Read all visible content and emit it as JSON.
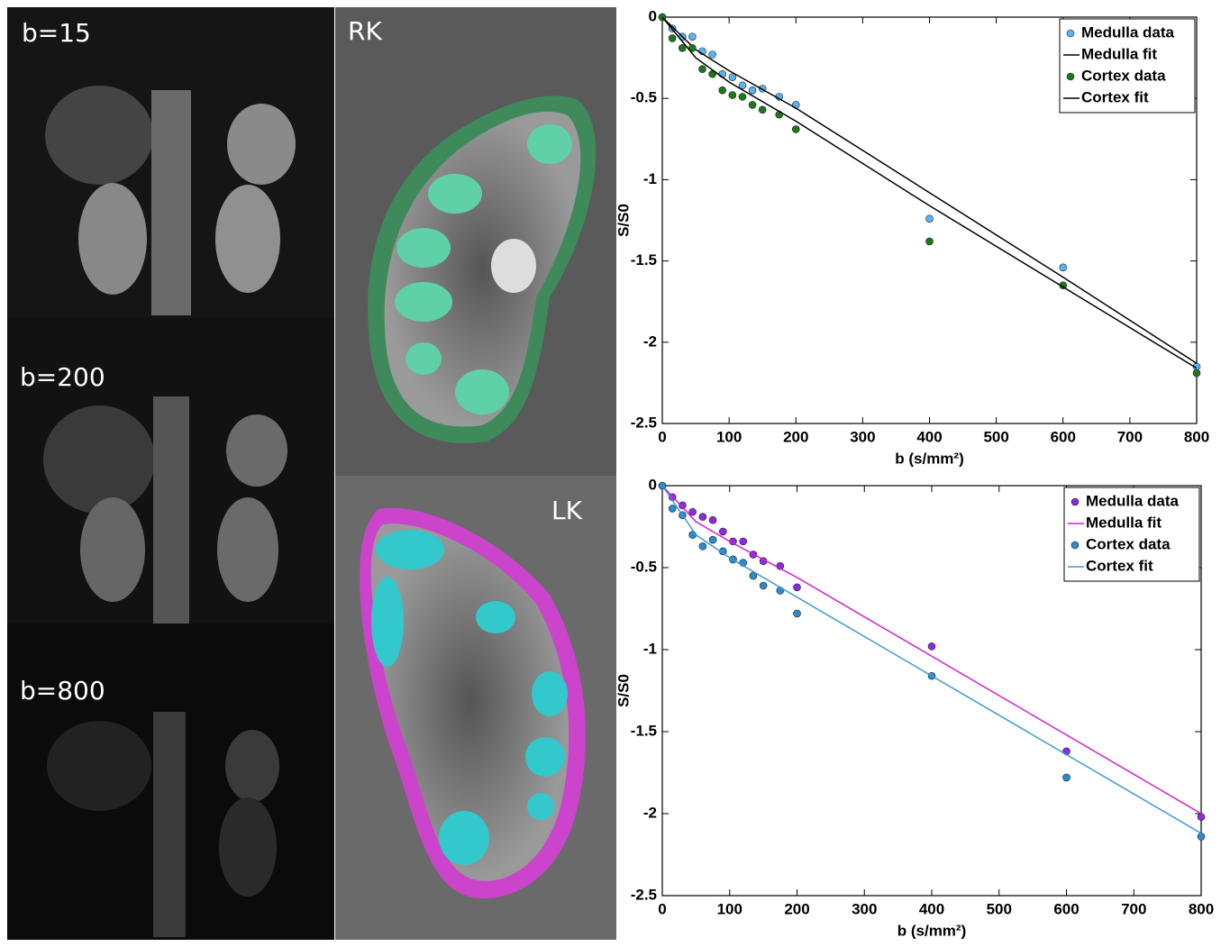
{
  "image_labels": [
    "b=15",
    "b=200",
    "b=800",
    "RK",
    "LK"
  ],
  "chart_data": [
    {
      "type": "scatter",
      "ylabel": "S/S0",
      "xlabel": "b (s/mm²)",
      "xlim": [
        0,
        800
      ],
      "ylim": [
        -2.5,
        0
      ],
      "xticks": [
        0,
        100,
        200,
        300,
        400,
        500,
        600,
        700,
        800
      ],
      "yticks": [
        -2.5,
        -2,
        -1.5,
        -1,
        -0.5,
        0
      ],
      "legend": "upper right",
      "series": [
        {
          "name": "Medulla data",
          "mode": "markers",
          "color": "#5ab4f0",
          "x": [
            0,
            15,
            30,
            45,
            60,
            75,
            90,
            105,
            120,
            135,
            150,
            175,
            200,
            400,
            600,
            800
          ],
          "values": [
            0,
            -0.07,
            -0.12,
            -0.12,
            -0.21,
            -0.23,
            -0.35,
            -0.37,
            -0.42,
            -0.45,
            -0.44,
            -0.49,
            -0.54,
            -1.24,
            -1.54,
            -2.15
          ]
        },
        {
          "name": "Medulla fit",
          "mode": "line",
          "color": "#000000",
          "x": [
            0,
            50,
            100,
            200,
            400,
            600,
            800
          ],
          "values": [
            0,
            -0.2,
            -0.33,
            -0.56,
            -1.08,
            -1.6,
            -2.13
          ]
        },
        {
          "name": "Cortex data",
          "mode": "markers",
          "color": "#1a7a1a",
          "x": [
            0,
            15,
            30,
            45,
            60,
            75,
            90,
            105,
            120,
            135,
            150,
            175,
            200,
            400,
            600,
            800
          ],
          "values": [
            0,
            -0.13,
            -0.19,
            -0.19,
            -0.32,
            -0.35,
            -0.45,
            -0.48,
            -0.49,
            -0.54,
            -0.57,
            -0.6,
            -0.69,
            -1.38,
            -1.65,
            -2.19
          ]
        },
        {
          "name": "Cortex fit",
          "mode": "line",
          "color": "#000000",
          "x": [
            0,
            50,
            100,
            200,
            400,
            600,
            800
          ],
          "values": [
            0,
            -0.25,
            -0.4,
            -0.64,
            -1.16,
            -1.66,
            -2.16
          ]
        }
      ]
    },
    {
      "type": "scatter",
      "ylabel": "S/S0",
      "xlabel": "b (s/mm²)",
      "xlim": [
        0,
        800
      ],
      "ylim": [
        -2.5,
        0
      ],
      "xticks": [
        0,
        100,
        200,
        300,
        400,
        500,
        600,
        700,
        800
      ],
      "yticks": [
        -2.5,
        -2,
        -1.5,
        -1,
        -0.5,
        0
      ],
      "legend": "upper right",
      "series": [
        {
          "name": "Medulla data",
          "mode": "markers",
          "color": "#8a2be2",
          "x": [
            0,
            15,
            30,
            45,
            60,
            75,
            90,
            105,
            120,
            135,
            150,
            175,
            200,
            400,
            600,
            800
          ],
          "values": [
            0,
            -0.07,
            -0.12,
            -0.16,
            -0.19,
            -0.21,
            -0.28,
            -0.34,
            -0.34,
            -0.42,
            -0.46,
            -0.49,
            -0.62,
            -0.98,
            -1.62,
            -2.02
          ]
        },
        {
          "name": "Medulla fit",
          "mode": "line",
          "color": "#d020d0",
          "x": [
            0,
            50,
            100,
            200,
            400,
            600,
            800
          ],
          "values": [
            0,
            -0.22,
            -0.34,
            -0.56,
            -1.04,
            -1.52,
            -2.0
          ]
        },
        {
          "name": "Cortex data",
          "mode": "markers",
          "color": "#2a8ccc",
          "x": [
            0,
            15,
            30,
            45,
            60,
            75,
            90,
            105,
            120,
            135,
            150,
            175,
            200,
            400,
            600,
            800
          ],
          "values": [
            0,
            -0.14,
            -0.18,
            -0.3,
            -0.37,
            -0.33,
            -0.4,
            -0.45,
            -0.47,
            -0.55,
            -0.61,
            -0.64,
            -0.78,
            -1.16,
            -1.78,
            -2.14
          ]
        },
        {
          "name": "Cortex fit",
          "mode": "line",
          "color": "#3a9ad0",
          "x": [
            0,
            50,
            100,
            200,
            400,
            600,
            800
          ],
          "values": [
            0,
            -0.3,
            -0.44,
            -0.68,
            -1.16,
            -1.64,
            -2.12
          ]
        }
      ]
    }
  ]
}
